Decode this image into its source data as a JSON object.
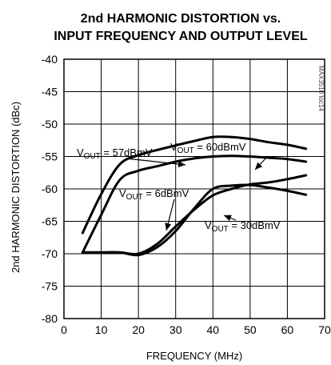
{
  "chart_data": {
    "type": "line",
    "title_line1": "2nd HARMONIC DISTORTION vs.",
    "title_line2": "INPUT FREQUENCY AND OUTPUT LEVEL",
    "xlabel": "FREQUENCY (MHz)",
    "ylabel": "2nd HARMONIC DISTORTION (dBc)",
    "xlim": [
      0,
      70
    ],
    "ylim": [
      -80,
      -40
    ],
    "xticks": [
      0,
      10,
      20,
      30,
      40,
      50,
      60,
      70
    ],
    "yticks": [
      -40,
      -45,
      -50,
      -55,
      -60,
      -65,
      -70,
      -75,
      -80
    ],
    "xtick_labels": [
      "0",
      "10",
      "20",
      "30",
      "40",
      "50",
      "60",
      "70"
    ],
    "ytick_labels": [
      "-40",
      "-45",
      "-50",
      "-55",
      "-60",
      "-65",
      "-70",
      "-75",
      "-80"
    ],
    "grid": true,
    "watermark": "MAX3510 toc14",
    "series": [
      {
        "name": "VOUT = 60dBmV",
        "x": [
          5,
          10,
          15,
          20,
          25,
          30,
          35,
          40,
          45,
          50,
          55,
          60,
          65
        ],
        "y": [
          -66.8,
          -60.8,
          -56.2,
          -54.8,
          -54.0,
          -53.3,
          -52.6,
          -52.0,
          -52.0,
          -52.3,
          -52.8,
          -53.2,
          -53.8
        ]
      },
      {
        "name": "VOUT = 57dBmV",
        "x": [
          5,
          10,
          15,
          20,
          25,
          30,
          35,
          40,
          45,
          50,
          55,
          60,
          65
        ],
        "y": [
          -69.8,
          -64.0,
          -58.6,
          -57.2,
          -56.5,
          -55.8,
          -55.3,
          -55.0,
          -54.9,
          -55.0,
          -55.2,
          -55.4,
          -55.8
        ]
      },
      {
        "name": "VOUT = 6dBmV",
        "x": [
          5,
          10,
          15,
          20,
          25,
          30,
          35,
          40,
          45,
          50,
          55,
          60,
          65
        ],
        "y": [
          -69.8,
          -69.8,
          -69.8,
          -70.0,
          -68.5,
          -65.8,
          -63.2,
          -61.0,
          -60.0,
          -59.3,
          -59.0,
          -58.5,
          -57.9
        ]
      },
      {
        "name": "VOUT = 30dBmV",
        "x": [
          5,
          10,
          15,
          20,
          25,
          30,
          35,
          40,
          45,
          50,
          55,
          60,
          65
        ],
        "y": [
          -69.8,
          -69.8,
          -69.8,
          -70.2,
          -69.0,
          -66.5,
          -63.0,
          -60.0,
          -59.5,
          -59.4,
          -59.8,
          -60.3,
          -60.9
        ]
      }
    ],
    "annotations": [
      {
        "pre": "V",
        "sub": "OUT",
        "post": " = 60dBmV",
        "series": 0
      },
      {
        "pre": "V",
        "sub": "OUT",
        "post": " = 57dBmV",
        "series": 1
      },
      {
        "pre": "V",
        "sub": "OUT",
        "post": " = 6dBmV",
        "series": 2
      },
      {
        "pre": "V",
        "sub": "OUT",
        "post": " = 30dBmV",
        "series": 3
      }
    ]
  }
}
